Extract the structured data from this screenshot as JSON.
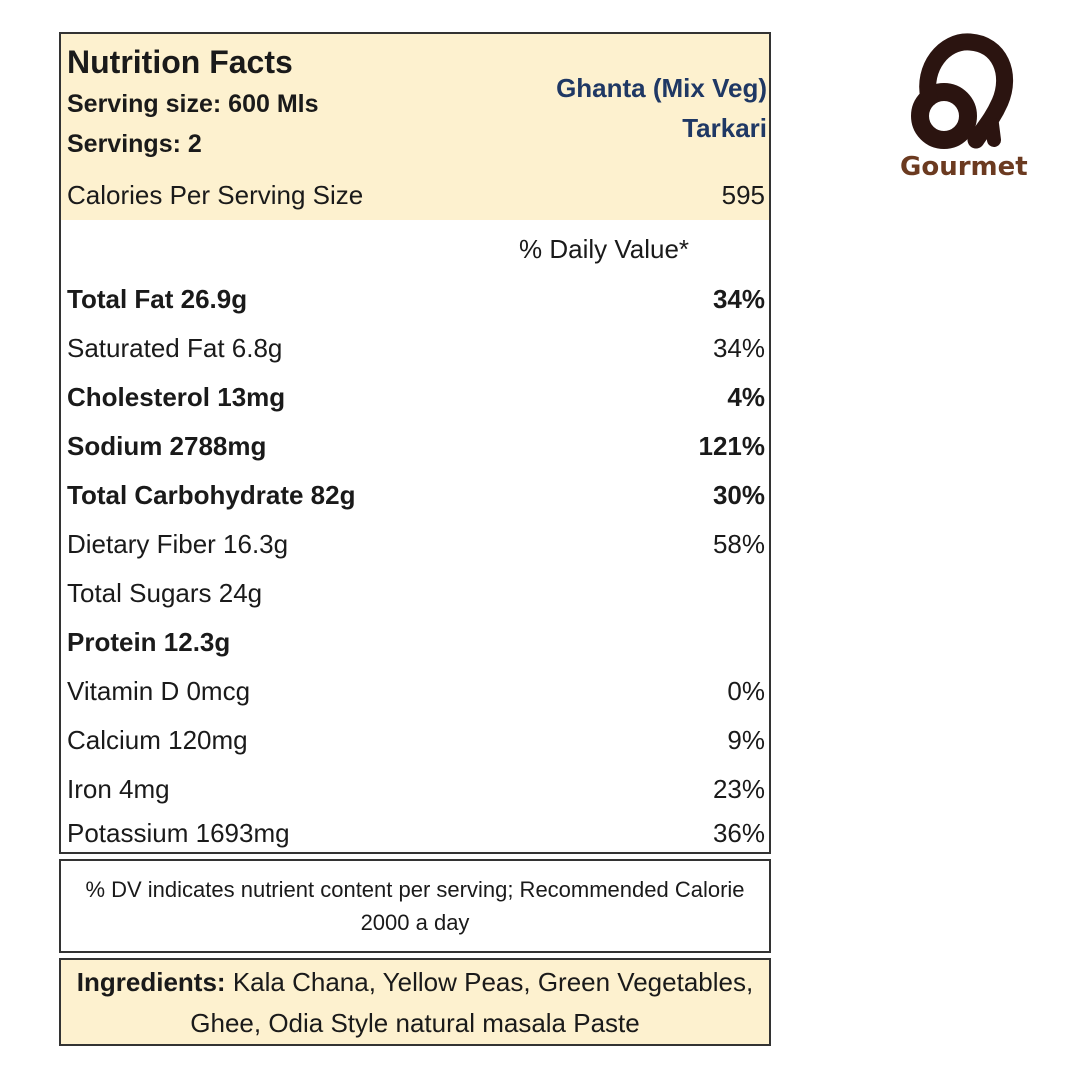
{
  "label": {
    "title": "Nutrition Facts",
    "serving_size": "Serving size: 600 Mls",
    "servings": "Servings: 2",
    "product_name_line1": "Ghanta (Mix Veg)",
    "product_name_line2": "Tarkari",
    "calories_label": "Calories Per Serving Size",
    "calories_value": "595",
    "daily_value_header": "% Daily Value*",
    "rows": [
      {
        "name": "Total Fat 26.9g",
        "dv": "34%",
        "bold": true
      },
      {
        "name": "Saturated Fat 6.8g",
        "dv": "34%",
        "bold": false
      },
      {
        "name": "Cholesterol 13mg",
        "dv": "4%",
        "bold": true
      },
      {
        "name": "Sodium 2788mg",
        "dv": "121%",
        "bold": true
      },
      {
        "name": "Total Carbohydrate 82g",
        "dv": "30%",
        "bold": true
      },
      {
        "name": "Dietary Fiber 16.3g",
        "dv": "58%",
        "bold": false
      },
      {
        "name": "Total Sugars 24g",
        "dv": "",
        "bold": false
      },
      {
        "name": "Protein 12.3g",
        "dv": "",
        "bold": true
      },
      {
        "name": "Vitamin D 0mcg",
        "dv": "0%",
        "bold": false
      },
      {
        "name": "Calcium 120mg",
        "dv": "9%",
        "bold": false
      },
      {
        "name": "Iron 4mg",
        "dv": "23%",
        "bold": false
      },
      {
        "name": "Potassium 1693mg",
        "dv": "36%",
        "bold": false
      }
    ]
  },
  "note": "% DV indicates nutrient content per serving; Recommended Calorie 2000 a day",
  "ingredients": {
    "heading": "Ingredients:",
    "text": "Kala Chana, Yellow Peas, Green Vegetables, Ghee, Odia Style natural masala Paste"
  },
  "brand": {
    "name": "Gourmet",
    "logo_color": "#2b1410"
  },
  "colors": {
    "header_bg": "#fdf1cf",
    "product_name": "#1f3864"
  }
}
